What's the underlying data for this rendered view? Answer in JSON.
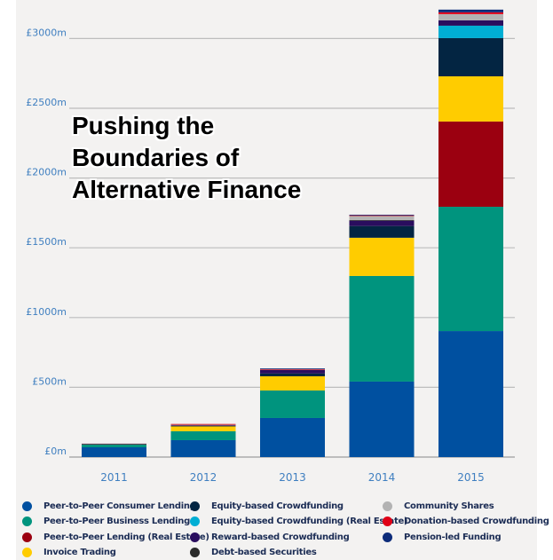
{
  "chart_data": {
    "type": "bar",
    "stacked": true,
    "title": "Pushing the Boundaries of Alternative Finance",
    "title_lines": [
      "Pushing the",
      "Boundaries of",
      "Alternative Finance"
    ],
    "xlabel": "",
    "ylabel": "",
    "ylim": [
      0,
      3200
    ],
    "yticks": [
      0,
      500,
      1000,
      1500,
      2000,
      2500,
      3000
    ],
    "ytick_labels": [
      "£0m",
      "£500m",
      "£1000m",
      "£1500m",
      "£2000m",
      "£2500m",
      "£3000m"
    ],
    "grid": true,
    "legend_position": "bottom",
    "categories": [
      "2011",
      "2012",
      "2013",
      "2014",
      "2015"
    ],
    "series": [
      {
        "name": "Peer-to-Peer Consumer Lending",
        "color": "#0050a0",
        "values": [
          70,
          121,
          280,
          541,
          903
        ]
      },
      {
        "name": "Peer-to-Peer Business Lending",
        "color": "#00947e",
        "values": [
          20,
          64,
          197,
          757,
          891
        ]
      },
      {
        "name": "Peer-to-Peer Lending (Real Estate)",
        "color": "#9b0010",
        "values": [
          0,
          0,
          0,
          0,
          611
        ]
      },
      {
        "name": "Invoice Trading",
        "color": "#ffcc00",
        "values": [
          5,
          38,
          102,
          274,
          324
        ]
      },
      {
        "name": "Equity-based Crowdfunding",
        "color": "#032542",
        "values": [
          0,
          2,
          20,
          84,
          274
        ]
      },
      {
        "name": "Equity-based Crowdfunding (Real Estate)",
        "color": "#00aed4",
        "values": [
          0,
          0,
          0,
          0,
          89
        ]
      },
      {
        "name": "Reward-based Crowdfunding",
        "color": "#2a0d5e",
        "values": [
          1,
          3,
          25,
          38,
          38
        ]
      },
      {
        "name": "Debt-based Securities",
        "color": "#2b2b2b",
        "values": [
          0,
          0,
          0,
          5,
          0
        ]
      },
      {
        "name": "Community Shares",
        "color": "#b3b3b3",
        "values": [
          0,
          8,
          6,
          32,
          45
        ]
      },
      {
        "name": "Donation-based Crowdfunding",
        "color": "#e00016",
        "values": [
          0,
          1,
          1,
          2,
          13
        ]
      },
      {
        "name": "Pension-led Funding",
        "color": "#0d2c7a",
        "values": [
          0,
          0,
          4,
          4,
          19
        ]
      }
    ]
  },
  "legend": {
    "columns": [
      [
        "Peer-to-Peer Consumer Lending",
        "Peer-to-Peer Business Lending",
        "Peer-to-Peer Lending (Real Estate)",
        "Invoice Trading"
      ],
      [
        "Equity-based Crowdfunding",
        "Equity-based Crowdfunding (Real Estate)",
        "Reward-based Crowdfunding",
        "Debt-based Securities"
      ],
      [
        "Community Shares",
        "Donation-based Crowdfunding",
        "Pension-led Funding"
      ]
    ]
  }
}
